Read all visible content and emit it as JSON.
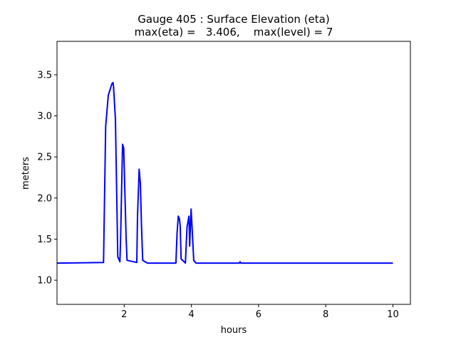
{
  "chart_data": {
    "type": "line",
    "title": "Gauge 405 : Surface Elevation (eta)",
    "subtitle": "max(eta) =   3.406,    max(level) = 7",
    "xlabel": "hours",
    "ylabel": "meters",
    "xlim": [
      0.0,
      10.52
    ],
    "ylim": [
      0.706,
      3.907
    ],
    "xticks": [
      2,
      4,
      6,
      8,
      10
    ],
    "xtick_labels": [
      "2",
      "4",
      "6",
      "8",
      "10"
    ],
    "yticks": [
      1.0,
      1.5,
      2.0,
      2.5,
      3.0,
      3.5
    ],
    "ytick_labels": [
      "1.0",
      "1.5",
      "2.0",
      "2.5",
      "3.0",
      "3.5"
    ],
    "grid": false,
    "series": [
      {
        "name": "eta",
        "color": "#0000ff",
        "x": [
          0.0,
          1.385,
          1.449,
          1.528,
          1.633,
          1.667,
          1.682,
          1.739,
          1.809,
          1.873,
          1.894,
          1.951,
          1.985,
          2.057,
          2.085,
          2.375,
          2.396,
          2.445,
          2.481,
          2.515,
          2.551,
          2.693,
          3.54,
          3.574,
          3.61,
          3.646,
          3.667,
          3.695,
          3.822,
          3.871,
          3.928,
          3.949,
          3.992,
          4.019,
          4.07,
          4.14,
          5.43,
          5.45,
          5.47,
          10.0
        ],
        "y": [
          1.208,
          1.216,
          2.87,
          3.251,
          3.39,
          3.406,
          3.364,
          2.957,
          1.286,
          1.225,
          1.519,
          2.654,
          2.61,
          1.519,
          1.242,
          1.216,
          1.779,
          2.351,
          2.177,
          1.658,
          1.242,
          1.208,
          1.208,
          1.571,
          1.779,
          1.745,
          1.658,
          1.26,
          1.208,
          1.649,
          1.779,
          1.416,
          1.866,
          1.658,
          1.242,
          1.208,
          1.208,
          1.225,
          1.208,
          1.208
        ]
      }
    ]
  }
}
